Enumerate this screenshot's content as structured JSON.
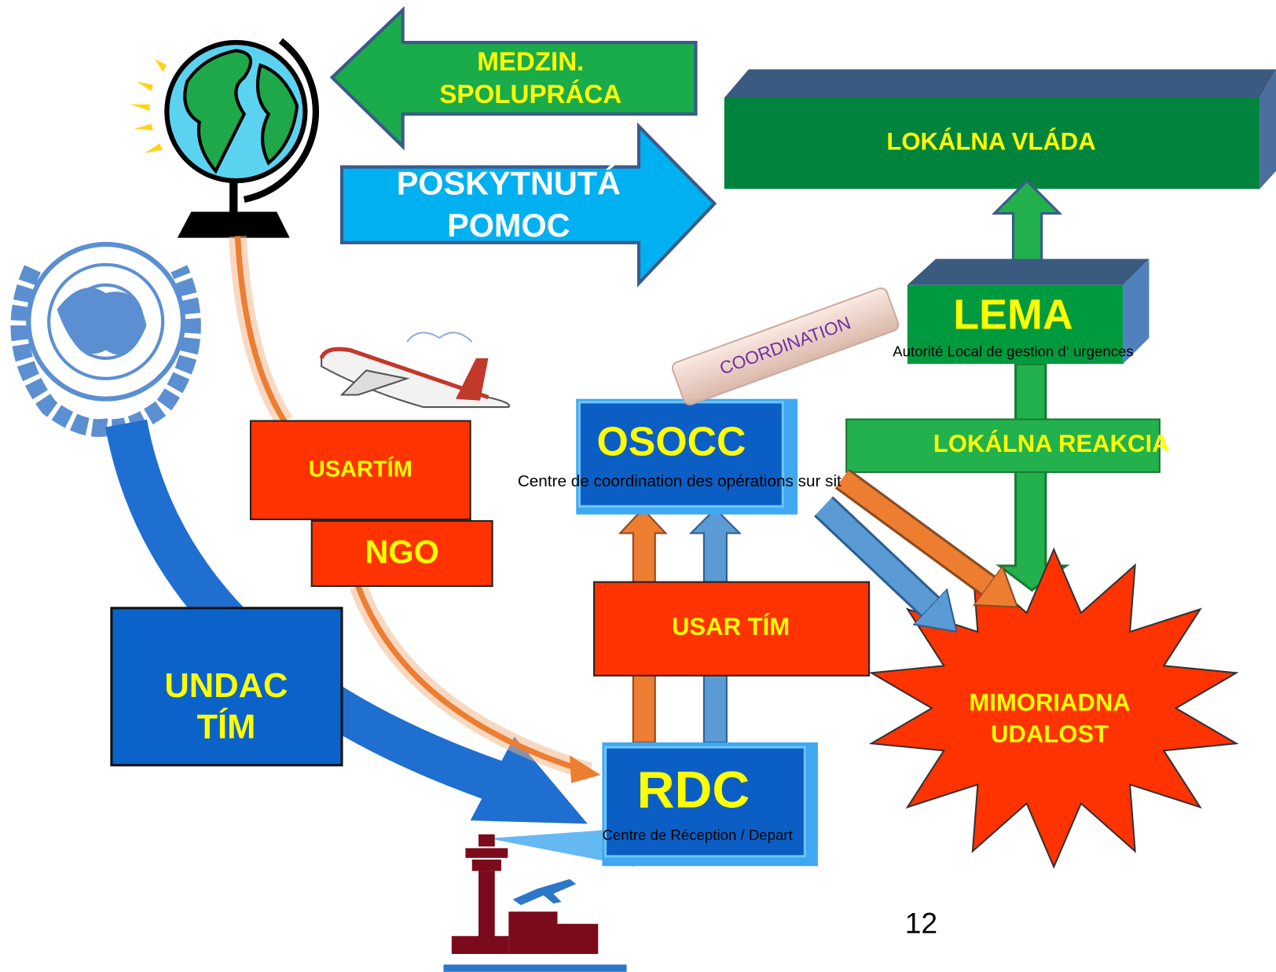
{
  "arrows": {
    "international_cooperation": [
      "MEDZIN.",
      "SPOLUPRÁCA"
    ],
    "aid_provided": [
      "POSKYTNUTÁ",
      "POMOC"
    ]
  },
  "nodes": {
    "local_government": "LOKÁLNA VLÁDA",
    "lema": {
      "title": "LEMA",
      "subtitle": "Autorité Local de gestion d‘ urgences"
    },
    "coordination": "COORDINATION",
    "osocc": {
      "title": "OSOCC",
      "subtitle": "Centre de coordination des opérations sur sit"
    },
    "local_response": "LOKÁLNA REAKCIA",
    "usar_team_ngo": "USARTÍM",
    "ngo": "NGO",
    "usar_team": "USAR TÍM",
    "undac_team": [
      "UNDAC",
      "TÍM"
    ],
    "rdc": {
      "title": "RDC",
      "subtitle": "Centre de Réception / Depart"
    },
    "event": [
      "MIMORIADNA",
      "UDALOST"
    ]
  },
  "page_number": "12"
}
